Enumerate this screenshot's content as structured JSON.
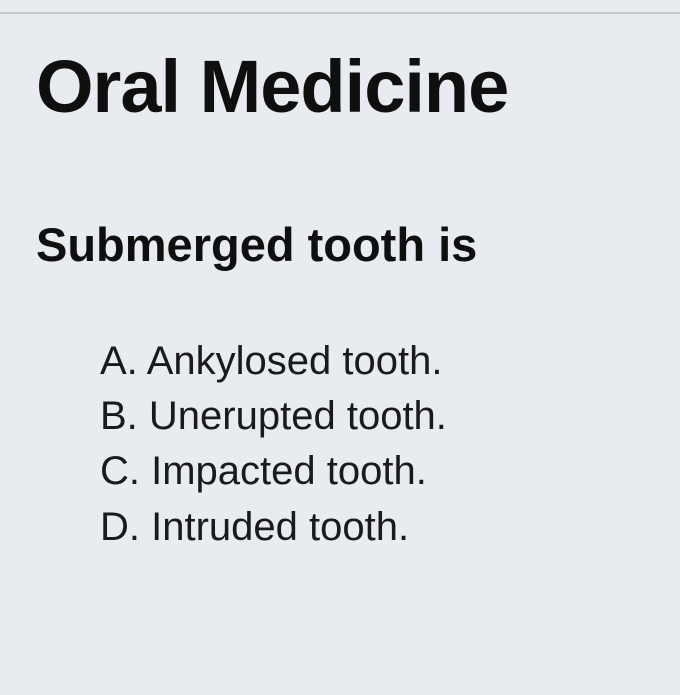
{
  "title": "Oral Medicine",
  "question": "Submerged tooth is",
  "options": [
    {
      "label": "A.",
      "text": "Ankylosed tooth."
    },
    {
      "label": "B.",
      "text": "Unerupted tooth."
    },
    {
      "label": "C.",
      "text": "Impacted tooth."
    },
    {
      "label": "D.",
      "text": "Intruded tooth."
    }
  ],
  "colors": {
    "background": "#e8ecf0",
    "text": "#0f0f0f",
    "topLine": "#c8c8c8"
  },
  "typography": {
    "title_fontsize": 74,
    "title_weight": 900,
    "question_fontsize": 47,
    "question_weight": 700,
    "option_fontsize": 40,
    "option_weight": 400
  }
}
